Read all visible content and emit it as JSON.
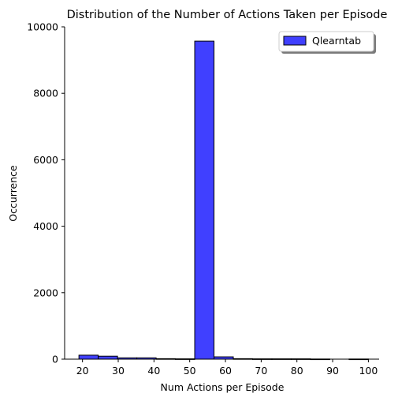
{
  "chart_data": {
    "type": "bar",
    "title": "Distribution of the Number of Actions Taken per Episode",
    "xlabel": "Num Actions per Episode",
    "ylabel": "Occurrence",
    "xlim": [
      15,
      103
    ],
    "ylim": [
      0,
      10000
    ],
    "xticks": [
      "20",
      "30",
      "40",
      "50",
      "60",
      "70",
      "80",
      "90",
      "100"
    ],
    "xtick_values": [
      20,
      30,
      40,
      50,
      60,
      70,
      80,
      90,
      100
    ],
    "yticks": [
      "0",
      "2000",
      "4000",
      "6000",
      "8000",
      "10000"
    ],
    "ytick_values": [
      0,
      2000,
      4000,
      6000,
      8000,
      10000
    ],
    "bin_edges": [
      19,
      24.4,
      29.8,
      35.2,
      40.6,
      46.0,
      51.4,
      56.8,
      62.2,
      67.6,
      73.0,
      78.4,
      83.8,
      89.2,
      94.6,
      100
    ],
    "series": [
      {
        "name": "Qlearntab",
        "counts": [
          120,
          90,
          40,
          40,
          15,
          10,
          9570,
          70,
          15,
          10,
          10,
          10,
          5,
          0,
          5
        ],
        "color": "#0000ff",
        "alpha": 0.75
      }
    ],
    "legend_position": "top-right",
    "grid": false
  }
}
